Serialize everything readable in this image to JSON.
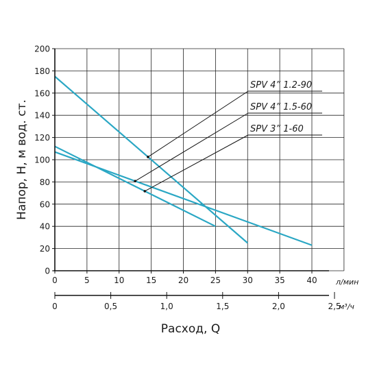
{
  "chart_data": {
    "type": "line",
    "title": "",
    "ylabel": "Напор, Н, м вод. ст.",
    "xlabel": "Расход, Q",
    "x_unit_primary": "л/мин",
    "x_unit_secondary": "м³/ч",
    "xlim": [
      0,
      45
    ],
    "ylim": [
      0,
      200
    ],
    "x_ticks": [
      0,
      5,
      10,
      15,
      20,
      25,
      30,
      35,
      40
    ],
    "y_ticks": [
      0,
      20,
      40,
      60,
      80,
      100,
      120,
      140,
      160,
      180,
      200
    ],
    "x2_ticks": [
      0,
      0.5,
      1.0,
      1.5,
      2.0,
      2.5
    ],
    "x2_tick_labels": [
      "0",
      "0,5",
      "1,0",
      "1,5",
      "2,0",
      "2,5"
    ],
    "grid": true,
    "legend": "top-right callouts",
    "series": [
      {
        "name": "SPV 4” 1.2-90",
        "color": "#2aa7c4",
        "x": [
          0,
          30
        ],
        "y": [
          175,
          25
        ],
        "label_x": 14.5
      },
      {
        "name": "SPV 4” 1.5-60",
        "color": "#2aa7c4",
        "x": [
          0,
          40
        ],
        "y": [
          107,
          23
        ],
        "label_x": 12.5
      },
      {
        "name": "SPV 3” 1-60",
        "color": "#2aa7c4",
        "x": [
          0,
          25
        ],
        "y": [
          112,
          40
        ],
        "label_x": 14
      }
    ]
  }
}
